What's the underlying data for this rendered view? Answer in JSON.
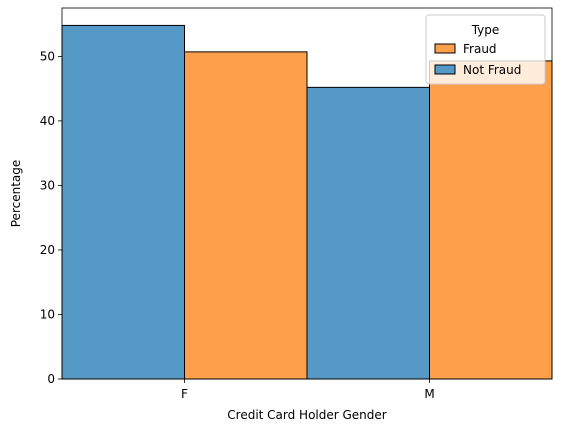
{
  "chart_data": {
    "type": "bar",
    "categories": [
      "F",
      "M"
    ],
    "series": [
      {
        "name": "Not Fraud",
        "values": [
          54.8,
          45.2
        ],
        "color": "#5599c7",
        "position": "left"
      },
      {
        "name": "Fraud",
        "values": [
          50.7,
          49.3
        ],
        "color": "#fe9f4b",
        "position": "right"
      }
    ],
    "xlabel": "Credit Card Holder Gender",
    "ylabel": "Percentage",
    "ylim": [
      0,
      57.5
    ],
    "yticks": [
      0,
      10,
      20,
      30,
      40,
      50
    ],
    "grid": false,
    "legend": {
      "title": "Type",
      "placement": "top-right",
      "entries": [
        {
          "label": "Fraud",
          "color": "#fe9f4b"
        },
        {
          "label": "Not Fraud",
          "color": "#5599c7"
        }
      ]
    }
  }
}
